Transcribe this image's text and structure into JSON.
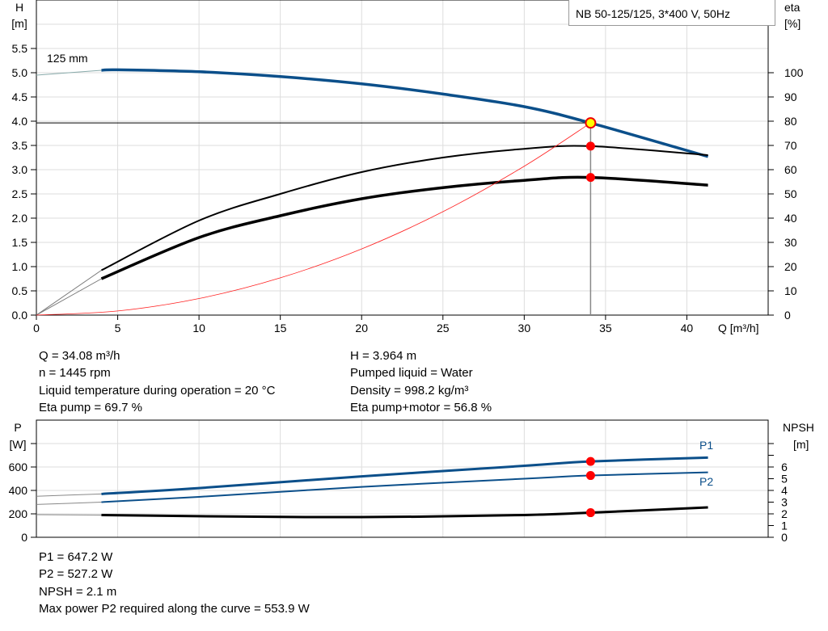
{
  "title": "NB 50-125/125, 3*400 V, 50Hz",
  "chart_data": [
    {
      "type": "line",
      "ylabel": "H",
      "yunit": "[m]",
      "y2label": "eta",
      "y2unit": "[%]",
      "xlabel": "Q [m³/h]",
      "xlim": [
        0,
        45
      ],
      "ylim": [
        0,
        6.5
      ],
      "y2lim": [
        0,
        100
      ],
      "xticks": [
        0,
        5,
        10,
        15,
        20,
        25,
        30,
        35,
        40
      ],
      "yticks": [
        "0.0",
        "0.5",
        "1.0",
        "1.5",
        "2.0",
        "2.5",
        "3.0",
        "3.5",
        "4.0",
        "4.5",
        "5.0",
        "5.5"
      ],
      "y2ticks": [
        0,
        10,
        20,
        30,
        40,
        50,
        60,
        70,
        80,
        90,
        100
      ],
      "grid": true,
      "curve_label": "125 mm",
      "series": [
        {
          "key": "H",
          "color": "#0b4f8a",
          "x": [
            0,
            4,
            5,
            10,
            15,
            20,
            25,
            30,
            34.08,
            41.3
          ],
          "y": [
            4.95,
            5.05,
            5.06,
            5.02,
            4.92,
            4.77,
            4.56,
            4.3,
            3.964,
            3.27
          ]
        },
        {
          "key": "eta_pump",
          "axis": "y2",
          "color": "#000000",
          "x": [
            0,
            4,
            10,
            15,
            20,
            25,
            30,
            34.08,
            41.3
          ],
          "y": [
            0,
            18.5,
            39,
            50,
            59,
            65,
            68.6,
            69.7,
            66
          ]
        },
        {
          "key": "eta_pump_motor",
          "axis": "y2",
          "color": "#000000",
          "x": [
            0,
            4,
            10,
            15,
            20,
            25,
            30,
            34.08,
            41.3
          ],
          "y": [
            0,
            15,
            32,
            41,
            48,
            52.6,
            55.6,
            56.8,
            53.6
          ]
        },
        {
          "key": "system_curve",
          "color": "#ff2020",
          "x": [
            0,
            5,
            10,
            15,
            20,
            25,
            30,
            34.08
          ],
          "y": [
            0,
            0.085,
            0.341,
            0.768,
            1.365,
            2.133,
            3.071,
            3.964
          ]
        }
      ],
      "duty_point": {
        "Q": 34.08,
        "H": 3.964,
        "eta_pump": 69.7,
        "eta_pump_motor": 56.8
      }
    },
    {
      "type": "line",
      "ylabel": "P",
      "yunit": "[W]",
      "y2label": "NPSH",
      "y2unit": "[m]",
      "xlim": [
        0,
        45
      ],
      "ylim": [
        0,
        1000
      ],
      "y2lim": [
        0,
        6.9
      ],
      "yticks": [
        0,
        200,
        400,
        600
      ],
      "y2ticks": [
        0,
        1,
        2,
        3,
        4,
        5,
        6
      ],
      "grid": true,
      "series": [
        {
          "key": "P1",
          "name": "P1",
          "color": "#0b4f8a",
          "x": [
            0,
            4,
            10,
            20,
            30,
            34.08,
            41.3
          ],
          "y": [
            350,
            370,
            420,
            520,
            610,
            647.2,
            680
          ]
        },
        {
          "key": "P2",
          "name": "P2",
          "color": "#0b4f8a",
          "x": [
            0,
            4,
            10,
            20,
            30,
            34.08,
            41.3
          ],
          "y": [
            280,
            300,
            345,
            430,
            500,
            527.2,
            553.9
          ]
        },
        {
          "key": "NPSH",
          "axis": "y2",
          "color": "#000000",
          "x": [
            0,
            4,
            10,
            20,
            30,
            34.08,
            41.3
          ],
          "y": [
            1.93,
            1.9,
            1.8,
            1.72,
            1.9,
            2.1,
            2.55
          ]
        }
      ]
    }
  ],
  "info_top_left": [
    "Q = 34.08 m³/h",
    "n = 1445 rpm",
    "Liquid temperature during operation = 20 °C",
    "Eta pump = 69.7 %"
  ],
  "info_top_right": [
    "H = 3.964 m",
    "Pumped liquid = Water",
    "Density = 998.2 kg/m³",
    "Eta pump+motor = 56.8 %"
  ],
  "info_bottom": [
    "P1 = 647.2 W",
    "P2 = 527.2 W",
    "NPSH = 2.1 m",
    "Max power P2 required along the curve = 553.9 W"
  ]
}
